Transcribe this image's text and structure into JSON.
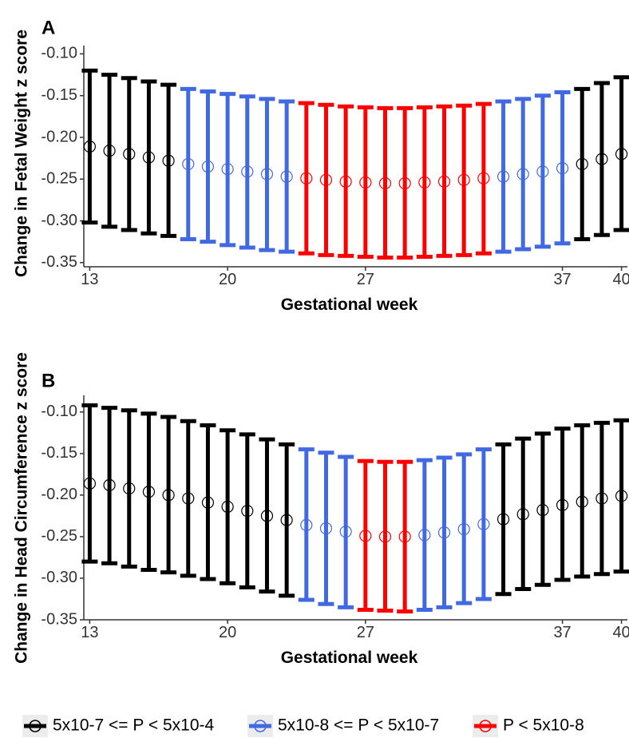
{
  "chart_data": [
    {
      "panel": "A",
      "type": "errorbar",
      "xlabel": "Gestational week",
      "ylabel": "Change in Fetal Weight z score",
      "xticks": [
        13,
        20,
        27,
        37,
        40
      ],
      "yticks": [
        -0.35,
        -0.3,
        -0.25,
        -0.2,
        -0.15,
        -0.1
      ],
      "ytick_labels": [
        "-0.35",
        "-0.30",
        "-0.25",
        "-0.20",
        "-0.15",
        "-0.10"
      ],
      "xlim": [
        12.7,
        40.3
      ],
      "ylim": [
        -0.355,
        -0.09
      ],
      "grid": false,
      "series": [
        {
          "group": 0,
          "x": [
            13,
            14,
            15,
            16,
            17
          ],
          "y": [
            -0.211,
            -0.216,
            -0.22,
            -0.224,
            -0.228
          ],
          "lower": [
            -0.302,
            -0.307,
            -0.311,
            -0.315,
            -0.318
          ],
          "upper": [
            -0.12,
            -0.125,
            -0.129,
            -0.133,
            -0.137
          ]
        },
        {
          "group": 1,
          "x": [
            18,
            19,
            20,
            21,
            22,
            23
          ],
          "y": [
            -0.232,
            -0.235,
            -0.238,
            -0.241,
            -0.244,
            -0.247
          ],
          "lower": [
            -0.322,
            -0.325,
            -0.329,
            -0.332,
            -0.335,
            -0.337
          ],
          "upper": [
            -0.142,
            -0.145,
            -0.148,
            -0.151,
            -0.154,
            -0.157
          ]
        },
        {
          "group": 2,
          "x": [
            24,
            25,
            26,
            27,
            28,
            29,
            30,
            31,
            32,
            33
          ],
          "y": [
            -0.249,
            -0.251,
            -0.253,
            -0.254,
            -0.255,
            -0.255,
            -0.254,
            -0.253,
            -0.251,
            -0.249
          ],
          "lower": [
            -0.339,
            -0.341,
            -0.342,
            -0.343,
            -0.344,
            -0.344,
            -0.343,
            -0.342,
            -0.341,
            -0.339
          ],
          "upper": [
            -0.159,
            -0.161,
            -0.163,
            -0.164,
            -0.165,
            -0.165,
            -0.164,
            -0.163,
            -0.162,
            -0.16
          ]
        },
        {
          "group": 1,
          "x": [
            34,
            35,
            36,
            37
          ],
          "y": [
            -0.247,
            -0.244,
            -0.241,
            -0.237
          ],
          "lower": [
            -0.337,
            -0.334,
            -0.331,
            -0.327
          ],
          "upper": [
            -0.157,
            -0.154,
            -0.15,
            -0.146
          ]
        },
        {
          "group": 0,
          "x": [
            38,
            39,
            40
          ],
          "y": [
            -0.232,
            -0.226,
            -0.22
          ],
          "lower": [
            -0.322,
            -0.317,
            -0.311
          ],
          "upper": [
            -0.142,
            -0.135,
            -0.128
          ]
        }
      ]
    },
    {
      "panel": "B",
      "type": "errorbar",
      "xlabel": "Gestational week",
      "ylabel": "Change in Head Circumference z score",
      "xticks": [
        13,
        20,
        27,
        37,
        40
      ],
      "yticks": [
        -0.35,
        -0.3,
        -0.25,
        -0.2,
        -0.15,
        -0.1
      ],
      "ytick_labels": [
        "-0.35",
        "-0.30",
        "-0.25",
        "-0.20",
        "-0.15",
        "-0.10"
      ],
      "xlim": [
        12.7,
        40.3
      ],
      "ylim": [
        -0.35,
        -0.08
      ],
      "grid": false,
      "series": [
        {
          "group": 0,
          "x": [
            13,
            14,
            15,
            16,
            17,
            18,
            19,
            20,
            21,
            22,
            23
          ],
          "y": [
            -0.186,
            -0.188,
            -0.192,
            -0.196,
            -0.2,
            -0.204,
            -0.209,
            -0.214,
            -0.219,
            -0.225,
            -0.23
          ],
          "lower": [
            -0.28,
            -0.282,
            -0.286,
            -0.29,
            -0.293,
            -0.297,
            -0.301,
            -0.306,
            -0.311,
            -0.316,
            -0.321
          ],
          "upper": [
            -0.092,
            -0.095,
            -0.098,
            -0.102,
            -0.106,
            -0.111,
            -0.116,
            -0.122,
            -0.127,
            -0.133,
            -0.139
          ]
        },
        {
          "group": 1,
          "x": [
            24,
            25,
            26
          ],
          "y": [
            -0.236,
            -0.24,
            -0.244
          ],
          "lower": [
            -0.326,
            -0.331,
            -0.335
          ],
          "upper": [
            -0.145,
            -0.149,
            -0.154
          ]
        },
        {
          "group": 2,
          "x": [
            27,
            28,
            29
          ],
          "y": [
            -0.249,
            -0.25,
            -0.25
          ],
          "lower": [
            -0.338,
            -0.339,
            -0.34
          ],
          "upper": [
            -0.159,
            -0.16,
            -0.16
          ]
        },
        {
          "group": 1,
          "x": [
            30,
            31,
            32,
            33
          ],
          "y": [
            -0.248,
            -0.245,
            -0.241,
            -0.235
          ],
          "lower": [
            -0.338,
            -0.335,
            -0.33,
            -0.325
          ],
          "upper": [
            -0.158,
            -0.155,
            -0.151,
            -0.145
          ]
        },
        {
          "group": 0,
          "x": [
            34,
            35,
            36,
            37,
            38,
            39,
            40
          ],
          "y": [
            -0.229,
            -0.223,
            -0.218,
            -0.212,
            -0.208,
            -0.204,
            -0.201
          ],
          "lower": [
            -0.319,
            -0.313,
            -0.308,
            -0.302,
            -0.298,
            -0.295,
            -0.292
          ],
          "upper": [
            -0.139,
            -0.132,
            -0.126,
            -0.12,
            -0.116,
            -0.113,
            -0.11
          ]
        }
      ]
    }
  ],
  "panels": {
    "a": {
      "label": "A"
    },
    "b": {
      "label": "B"
    }
  },
  "legend": [
    {
      "group": 0,
      "label": "5x10-7 <= P < 5x10-4",
      "color": "#000000"
    },
    {
      "group": 1,
      "label": "5x10-8 <= P < 5x10-7",
      "color": "#4169E1"
    },
    {
      "group": 2,
      "label": "P < 5x10-8",
      "color": "#FF0000"
    }
  ],
  "colors": {
    "group0": "#000000",
    "group1": "#4169E1",
    "group2": "#FF0000"
  }
}
